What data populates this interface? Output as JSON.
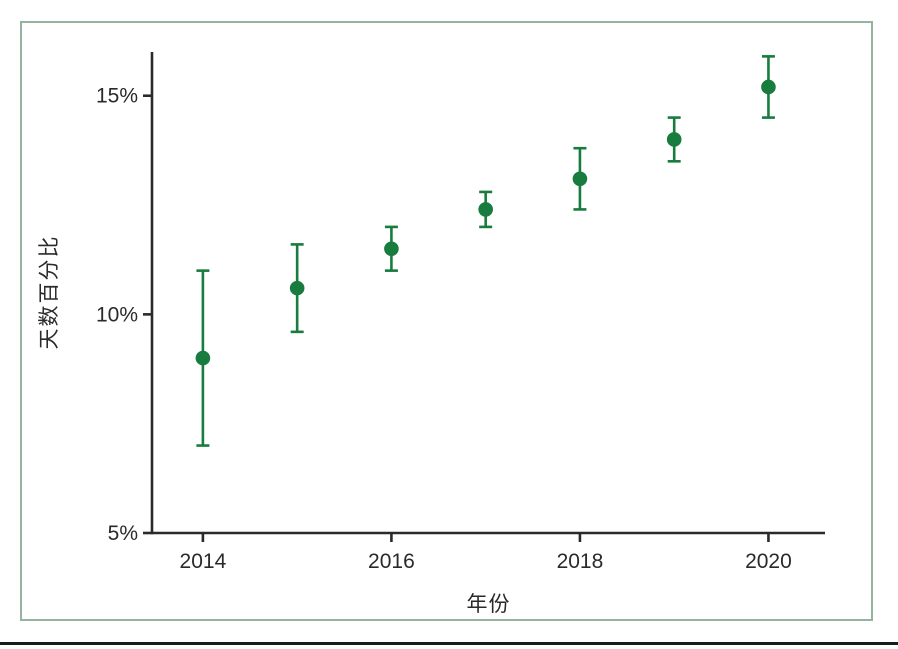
{
  "figure": {
    "frame_border_color": "#94b49e",
    "axis_color": "#2b2a29",
    "text_color": "#2b2a29",
    "bottom_rule_color": "#1a1a1a"
  },
  "chart_data": {
    "type": "scatter",
    "subtype": "point-estimates-with-error-bars",
    "title": "",
    "xlabel": "年份",
    "ylabel": "天数百分比",
    "x": [
      2014,
      2015,
      2016,
      2017,
      2018,
      2019,
      2020
    ],
    "series": [
      {
        "name": "天数百分比",
        "values": [
          9.0,
          10.6,
          11.5,
          12.4,
          13.1,
          14.0,
          15.2
        ],
        "ci_low": [
          7.0,
          9.6,
          11.0,
          12.0,
          12.4,
          13.5,
          14.5
        ],
        "ci_high": [
          11.0,
          11.6,
          12.0,
          12.8,
          13.8,
          14.5,
          15.9
        ]
      }
    ],
    "marker_color": "#177c3d",
    "x_ticks": [
      2014,
      2016,
      2018,
      2020
    ],
    "x_tick_labels": [
      "2014",
      "2016",
      "2018",
      "2020"
    ],
    "y_ticks": [
      5,
      10,
      15
    ],
    "y_tick_labels": [
      "5%",
      "10%",
      "15%"
    ],
    "xlim": [
      2013.46,
      2020.6
    ],
    "ylim": [
      5,
      16
    ],
    "grid": false,
    "legend": "none"
  }
}
